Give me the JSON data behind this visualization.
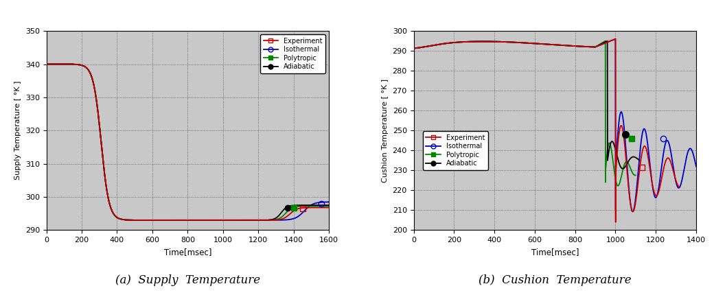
{
  "supply_temp": {
    "xlabel": "Time[msec]",
    "ylabel": "Supply Temperature [ °K ]",
    "caption": "(a)  Supply  Temperature",
    "xlim": [
      0,
      1600
    ],
    "ylim": [
      290,
      350
    ],
    "yticks": [
      290,
      300,
      310,
      320,
      330,
      340,
      350
    ],
    "xticks": [
      0,
      200,
      400,
      600,
      800,
      1000,
      1200,
      1400,
      1600
    ],
    "panel_color": "#c8c8c8",
    "experiment_color": "#cc0000",
    "isothermal_color": "#0000cc",
    "polytropic_color": "#008800",
    "adiabatic_color": "#000000",
    "legend_labels": [
      "Experiment",
      "Isothermal",
      "Polytropic",
      "Adiabatic"
    ]
  },
  "cushion_temp": {
    "xlabel": "Time[msec]",
    "ylabel": "Cushion Temperature [ °K ]",
    "caption": "(b)  Cushion  Temperature",
    "xlim": [
      0,
      1400
    ],
    "ylim": [
      200,
      300
    ],
    "yticks": [
      200,
      210,
      220,
      230,
      240,
      250,
      260,
      270,
      280,
      290,
      300
    ],
    "xticks": [
      0,
      200,
      400,
      600,
      800,
      1000,
      1200,
      1400
    ],
    "panel_color": "#c8c8c8",
    "experiment_color": "#cc0000",
    "isothermal_color": "#0000cc",
    "polytropic_color": "#008800",
    "adiabatic_color": "#000000",
    "legend_labels": [
      "Experiment",
      "Isothermal",
      "Polytropic",
      "Adiabatic"
    ]
  },
  "fig_bg": "#ffffff",
  "caption_fontsize": 12
}
